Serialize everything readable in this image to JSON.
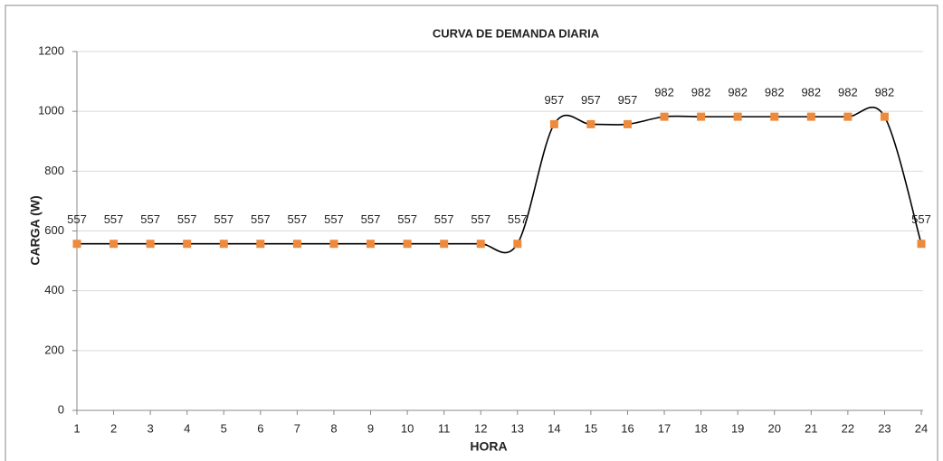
{
  "chart_data": {
    "type": "line",
    "title": "CURVA DE DEMANDA DIARIA",
    "x_label": "HORA",
    "y_label": "CARGA (W)",
    "x": [
      1,
      2,
      3,
      4,
      5,
      6,
      7,
      8,
      9,
      10,
      11,
      12,
      13,
      14,
      15,
      16,
      17,
      18,
      19,
      20,
      21,
      22,
      23,
      24
    ],
    "series": [
      {
        "name": "CARGA (W)",
        "color": "#ee8a3c",
        "line_color": "#000000",
        "values": [
          557,
          557,
          557,
          557,
          557,
          557,
          557,
          557,
          557,
          557,
          557,
          557,
          557,
          957,
          957,
          957,
          982,
          982,
          982,
          982,
          982,
          982,
          982,
          557
        ]
      }
    ],
    "xlim": [
      1,
      24
    ],
    "xticks": [
      1,
      2,
      3,
      4,
      5,
      6,
      7,
      8,
      9,
      10,
      11,
      12,
      13,
      14,
      15,
      16,
      17,
      18,
      19,
      20,
      21,
      22,
      23,
      24
    ],
    "ylim": [
      0,
      1200
    ],
    "yticks": [
      0,
      200,
      400,
      600,
      800,
      1000,
      1200
    ],
    "grid": true,
    "smooth": true
  }
}
